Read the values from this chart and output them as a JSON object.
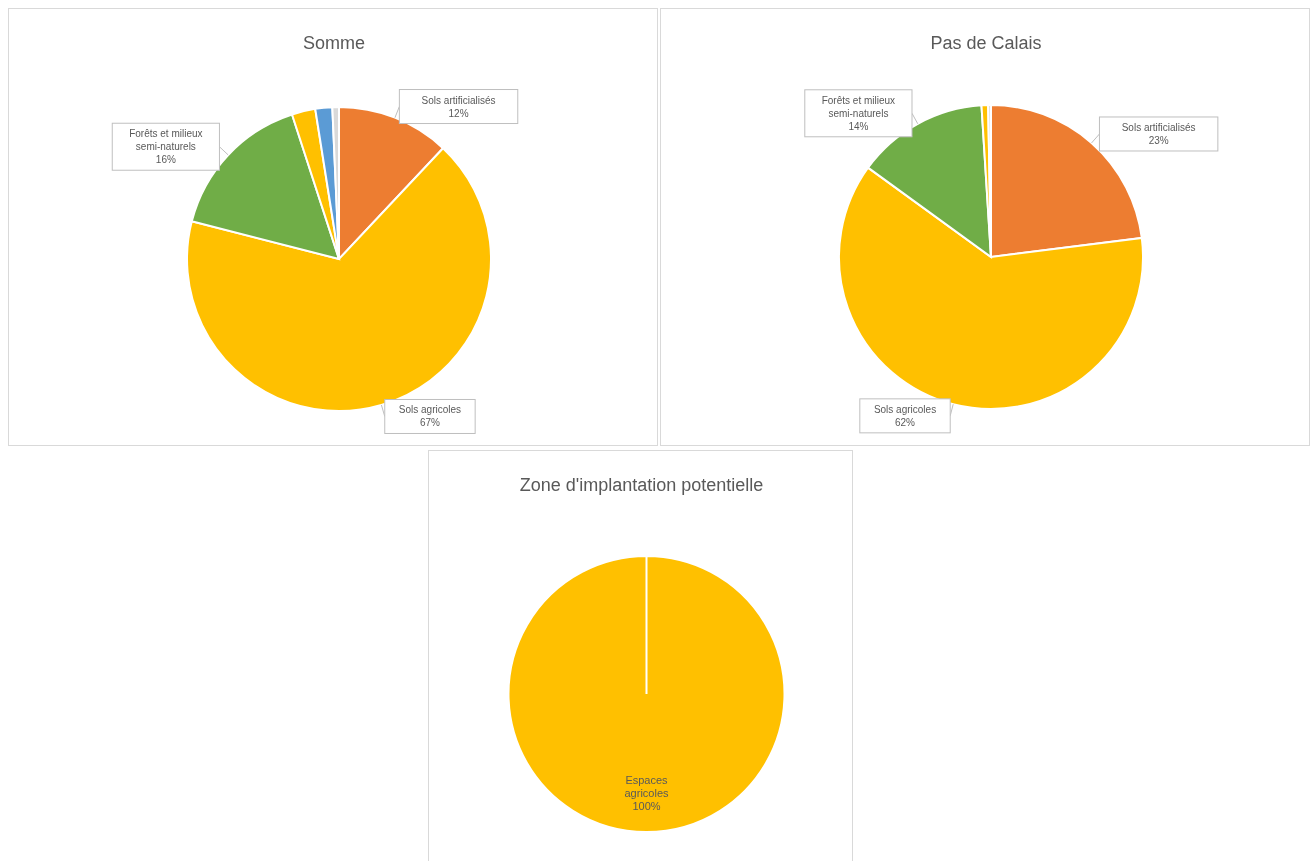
{
  "chart_data": [
    {
      "type": "pie",
      "title": "Somme",
      "categories": [
        "Sols artificialisés",
        "Sols agricoles",
        "Forêts et milieux semi-naturels",
        null,
        null,
        null
      ],
      "values": [
        12,
        67,
        16,
        2.5,
        1.8,
        0.7
      ],
      "colors": [
        "#ed7d31",
        "#ffc000",
        "#70ad47",
        "#ffc000",
        "#5b9bd5",
        "#d9d9d9"
      ],
      "value_labels": [
        "12%",
        "67%",
        "16%",
        null,
        null,
        null
      ]
    },
    {
      "type": "pie",
      "title": "Pas de Calais",
      "categories": [
        "Sols artificialisés",
        "Sols agricoles",
        "Forêts et milieux semi-naturels",
        null,
        null
      ],
      "values": [
        23,
        62,
        14,
        0.7,
        0.3
      ],
      "colors": [
        "#ed7d31",
        "#ffc000",
        "#70ad47",
        "#ffc000",
        "#d9d9d9"
      ],
      "value_labels": [
        "23%",
        "62%",
        "14%",
        null,
        null
      ]
    },
    {
      "type": "pie",
      "title": "Zone d'implantation potentielle",
      "categories": [
        "Espaces agricoles"
      ],
      "values": [
        100
      ],
      "colors": [
        "#ffc000"
      ],
      "value_labels": [
        "100%"
      ]
    }
  ]
}
